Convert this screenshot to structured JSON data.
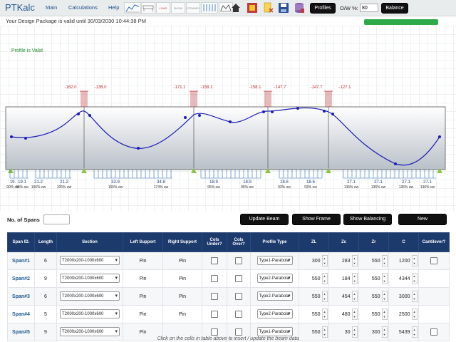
{
  "app": {
    "name": "PTKalc"
  },
  "nav": {
    "main": "Main",
    "calculations": "Calculations",
    "help": "Help"
  },
  "toolbar": {
    "icons": [
      {
        "name": "materials-chart-icon",
        "label": "MATERIALS"
      },
      {
        "name": "spans-icon",
        "label": "SPANS"
      },
      {
        "name": "load-cases-icon",
        "label": "LOAD CASES"
      },
      {
        "name": "show-loads-icon",
        "label": "SHOW LOADS"
      },
      {
        "name": "strands-icon",
        "label": "STRANDS"
      },
      {
        "name": "tendons-icon",
        "label": ""
      }
    ],
    "profiles_label": "Profiles",
    "ow_label": "O/W %:",
    "ow_value": "80",
    "balance_label": "Balance"
  },
  "status": {
    "package": "Your Design Package is valid until 30/03/2030 10:44:38 PM",
    "progress": 1.0,
    "profile": "Profile is Valid"
  },
  "beam": {
    "force_labels": [
      "-162.0",
      "-136.0",
      "-171.1",
      "-158.1",
      "-158.1",
      "-147.7",
      "-147.7",
      "-127.1"
    ],
    "bottom_labels": [
      {
        "value": "19.",
        "ow": "90% ow"
      },
      {
        "value": "19.1",
        "ow": "95% ow"
      },
      {
        "value": "21.2",
        "ow": "106% ow"
      },
      {
        "value": "21.2",
        "ow": "106% ow"
      },
      {
        "value": "32.9",
        "ow": "165% ow"
      },
      {
        "value": "34.8",
        "ow": "174% ow"
      },
      {
        "value": "18.9",
        "ow": "95% ow"
      },
      {
        "value": "18.9",
        "ow": "95% ow"
      },
      {
        "value": "18.6",
        "ow": "93% ow"
      },
      {
        "value": "18.6",
        "ow": "93% ow"
      },
      {
        "value": "27.1",
        "ow": "136% ow"
      },
      {
        "value": "27.1",
        "ow": "136% ow"
      },
      {
        "value": "27.1",
        "ow": "136% ow"
      },
      {
        "value": "27.1",
        "ow": "136% ow"
      }
    ]
  },
  "controls": {
    "spans_label": "No. of Spans",
    "spans_value": "",
    "update_label": "Update Beam",
    "frame_label": "Show Frame",
    "balancing_label": "Show Balancing",
    "new_label": "New"
  },
  "table": {
    "headers": [
      "Span ID.",
      "Length",
      "Section",
      "Left Support",
      "Right Support",
      "Cols Under?",
      "Cols Over?",
      "Profile Type",
      "ZL",
      "Zc",
      "Zr",
      "C",
      "Cantilever?"
    ],
    "rows": [
      {
        "id": "Span#1",
        "length": "6",
        "section": "T2000x200-1000x600",
        "left": "Pin",
        "right": "Pin",
        "profile": "Type1-Parabola",
        "zl": "300",
        "zc": "283",
        "zr": "550",
        "c": "1200",
        "cant": true
      },
      {
        "id": "Span#2",
        "length": "9",
        "section": "T2000x200-1000x600",
        "left": "Pin",
        "right": "Pin",
        "profile": "Type2-Parabola",
        "zl": "550",
        "zc": "184",
        "zr": "550",
        "c": "4344",
        "cant": false
      },
      {
        "id": "Span#3",
        "length": "6",
        "section": "T2000x200-1000x600",
        "left": "Pin",
        "right": "Pin",
        "profile": "Type2-Parabola",
        "zl": "550",
        "zc": "454",
        "zr": "550",
        "c": "3000",
        "cant": false
      },
      {
        "id": "Span#4",
        "length": "5",
        "section": "T2000x200-1000x600",
        "left": "Pin",
        "right": "Pin",
        "profile": "Type2-Parabola",
        "zl": "550",
        "zc": "480",
        "zr": "550",
        "c": "2500",
        "cant": false
      },
      {
        "id": "Span#5",
        "length": "9",
        "section": "T2000x200-1000x600",
        "left": "Pin",
        "right": "",
        "profile": "Type1-Parabola",
        "zl": "550",
        "zc": "30",
        "zr": "300",
        "c": "5439",
        "cant": true
      }
    ]
  },
  "footer": {
    "note": "Click on the cells in table above to insert / update the beam data"
  },
  "colors": {
    "accent": "#1c3a6b",
    "valid": "#1e8a2a",
    "progress": "#2eab48",
    "profile_line": "#1d1db8",
    "force": "#c0393b"
  }
}
